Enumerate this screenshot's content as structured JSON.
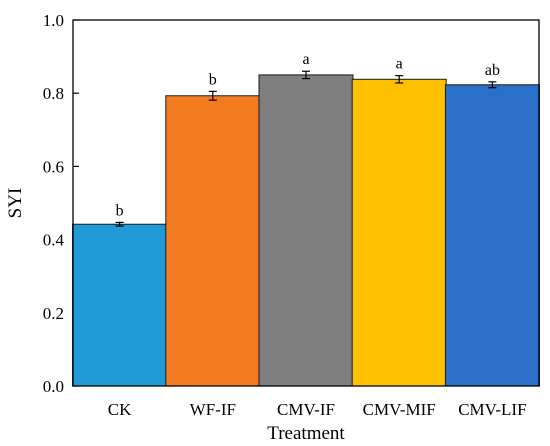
{
  "chart_data": {
    "type": "bar",
    "title": "",
    "xlabel": "Treatment",
    "ylabel": "SYI",
    "ylim": [
      0.0,
      1.0
    ],
    "yticks": [
      "0.0",
      "0.2",
      "0.4",
      "0.6",
      "0.8",
      "1.0"
    ],
    "ytick_values": [
      0.0,
      0.2,
      0.4,
      0.6,
      0.8,
      1.0
    ],
    "grid": false,
    "legend": "none",
    "categories": [
      "CK",
      "WF-IF",
      "CMV-IF",
      "CMV-MIF",
      "CMV-LIF"
    ],
    "values": [
      0.442,
      0.793,
      0.85,
      0.838,
      0.823
    ],
    "errors": [
      0.005,
      0.012,
      0.01,
      0.01,
      0.008
    ],
    "significance": [
      "b",
      "b",
      "a",
      "a",
      "ab"
    ],
    "colors": [
      "#1f9ad6",
      "#f47c20",
      "#7f7f7f",
      "#ffc000",
      "#2a6fc9"
    ]
  }
}
